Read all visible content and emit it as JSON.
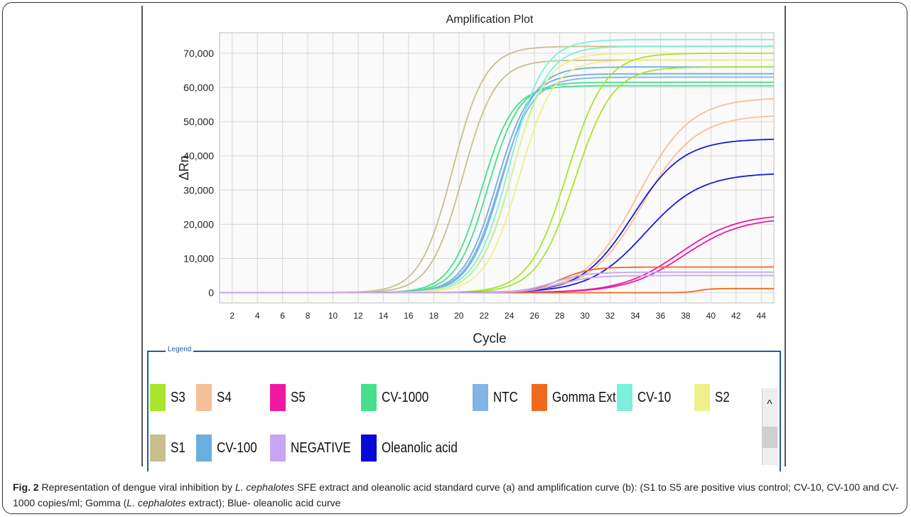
{
  "chart_data": {
    "type": "line",
    "title": "Amplification Plot",
    "xlabel": "Cycle",
    "ylabel": "ΔRn",
    "xlim": [
      1,
      45
    ],
    "ylim": [
      -3000,
      76000
    ],
    "x_ticks": [
      2,
      4,
      6,
      8,
      10,
      12,
      14,
      16,
      18,
      20,
      22,
      24,
      26,
      28,
      30,
      32,
      34,
      36,
      38,
      40,
      42,
      44
    ],
    "y_ticks": [
      0,
      10000,
      20000,
      30000,
      40000,
      50000,
      60000,
      70000
    ],
    "y_tick_labels": [
      "0",
      "10,000",
      "20,000",
      "30,000",
      "40,000",
      "50,000",
      "60,000",
      "70,000"
    ],
    "grid": true,
    "series": [
      {
        "name": "S1",
        "color": "#c9bf8e",
        "curves": [
          {
            "plateau": 72000,
            "midpoint": 19.5,
            "slope": 1.3
          },
          {
            "plateau": 68000,
            "midpoint": 20.3,
            "slope": 1.3
          }
        ]
      },
      {
        "name": "CV-1000",
        "color": "#45e08a",
        "curves": [
          {
            "plateau": 60500,
            "midpoint": 21.8,
            "slope": 1.25
          },
          {
            "plateau": 61500,
            "midpoint": 22.3,
            "slope": 1.25
          }
        ]
      },
      {
        "name": "CV-100",
        "color": "#6aafdf",
        "curves": [
          {
            "plateau": 64000,
            "midpoint": 23.0,
            "slope": 1.3
          },
          {
            "plateau": 66000,
            "midpoint": 23.4,
            "slope": 1.3
          }
        ]
      },
      {
        "name": "NTC",
        "color": "#82b4e6",
        "curves": [
          {
            "plateau": 63000,
            "midpoint": 23.2,
            "slope": 1.3
          }
        ]
      },
      {
        "name": "CV-10",
        "color": "#7df0da",
        "curves": [
          {
            "plateau": 74000,
            "midpoint": 24.0,
            "slope": 1.35
          },
          {
            "plateau": 72000,
            "midpoint": 24.3,
            "slope": 1.35
          }
        ]
      },
      {
        "name": "S2",
        "color": "#eef08a",
        "curves": [
          {
            "plateau": 70000,
            "midpoint": 24.2,
            "slope": 1.35
          },
          {
            "plateau": 68000,
            "midpoint": 24.8,
            "slope": 1.35
          }
        ]
      },
      {
        "name": "S3",
        "color": "#a6e62b",
        "curves": [
          {
            "plateau": 70000,
            "midpoint": 28.6,
            "slope": 1.5
          },
          {
            "plateau": 66000,
            "midpoint": 29.2,
            "slope": 1.5
          }
        ]
      },
      {
        "name": "S4",
        "color": "#f5c097",
        "curves": [
          {
            "plateau": 57000,
            "midpoint": 34.2,
            "slope": 2.1
          },
          {
            "plateau": 52000,
            "midpoint": 34.6,
            "slope": 2.1
          }
        ]
      },
      {
        "name": "Oleanolic acid",
        "color": "#1919e0",
        "curves": [
          {
            "plateau": 45000,
            "midpoint": 33.8,
            "slope": 2.0
          },
          {
            "plateau": 35000,
            "midpoint": 34.8,
            "slope": 2.2
          }
        ]
      },
      {
        "name": "S5",
        "color": "#f018a0",
        "curves": [
          {
            "plateau": 23000,
            "midpoint": 37.5,
            "slope": 2.3
          },
          {
            "plateau": 22000,
            "midpoint": 37.9,
            "slope": 2.3
          }
        ]
      },
      {
        "name": "Gomma Ext",
        "color": "#f06a1e",
        "curves": [
          {
            "plateau": 7500,
            "midpoint": 28.0,
            "slope": 1.2
          },
          {
            "plateau": 1200,
            "midpoint": 39.0,
            "slope": 0.5
          }
        ]
      },
      {
        "name": "NEGATIVE",
        "color": "#c8a6f5",
        "curves": [
          {
            "plateau": 6000,
            "midpoint": 27.5,
            "slope": 1.3
          },
          {
            "plateau": 5000,
            "midpoint": 28.0,
            "slope": 1.3
          }
        ]
      }
    ]
  },
  "legend": {
    "title": "Legend",
    "items": [
      {
        "label": "S3",
        "color": "#a6e62b"
      },
      {
        "label": "S4",
        "color": "#f5c097"
      },
      {
        "label": "S5",
        "color": "#f018a0"
      },
      {
        "label": "CV-1000",
        "color": "#45e08a"
      },
      {
        "label": "NTC",
        "color": "#82b4e6"
      },
      {
        "label": "Gomma Ext",
        "color": "#f06a1e"
      },
      {
        "label": "CV-10",
        "color": "#7df0da"
      },
      {
        "label": "S2",
        "color": "#eef08a"
      },
      {
        "label": "S1",
        "color": "#c9bf8e"
      },
      {
        "label": "CV-100",
        "color": "#6aafdf"
      },
      {
        "label": "NEGATIVE",
        "color": "#c8a6f5"
      },
      {
        "label": "Oleanolic acid",
        "color": "#0808d8"
      }
    ]
  },
  "caption": {
    "fig": "Fig. 2",
    "text1": " Representation of dengue viral inhibition by ",
    "italic1": "L. cephalotes",
    "text2": " SFE extract and oleanolic acid standard curve (a) and amplification curve (b): (S1 to S5 are positive vius control; CV-10, CV-100 and CV-1000 copies/ml; Gomma (",
    "italic2": "L. cephalotes",
    "text3": " extract); Blue- oleanolic acid curve"
  }
}
